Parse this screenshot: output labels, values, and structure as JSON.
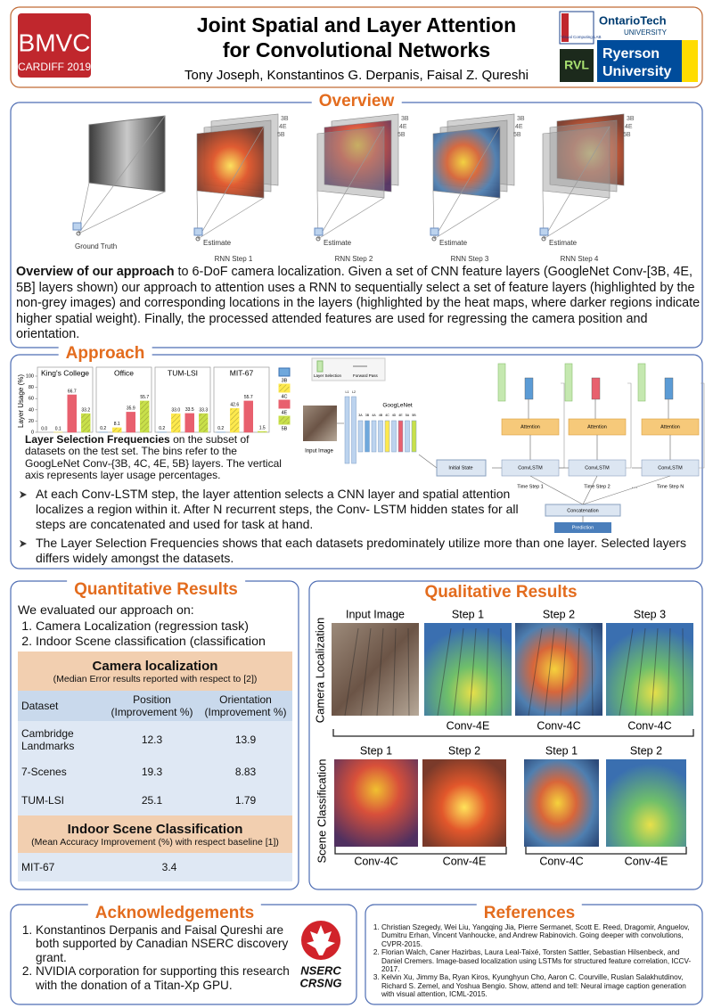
{
  "header": {
    "logo_text": "BMVC",
    "logo_subtext": "CARDIFF 2019",
    "title_lines": [
      "Joint Spatial and Layer Attention",
      "for Convolutional Networks"
    ],
    "authors": "Tony Joseph, Konstantinos G. Derpanis, Faisal Z. Qureshi",
    "logos": [
      "Visual Computing LAB",
      "OntarioTech",
      "UNIVERSITY",
      "RVL",
      "Ryerson",
      "University"
    ]
  },
  "overview": {
    "heading": "Overview",
    "layer_labels": [
      "3B",
      "4E",
      "5B"
    ],
    "point_labels": [
      "Ground Truth",
      "Estimate",
      "Estimate",
      "Estimate",
      "Estimate"
    ],
    "step_labels": [
      "RNN Step 1",
      "RNN Step 2",
      "RNN Step 3",
      "RNN Step 4"
    ],
    "text_lead": "Overview of our approach",
    "text": "to 6-DoF camera localization. Given a set of CNN feature layers (GoogleNet Conv-[3B, 4E, 5B] layers shown) our approach to attention uses a RNN to sequentially select a set of feature layers (highlighted by the non-grey images) and corresponding locations in the layers (highlighted by the heat maps, where darker regions indicate higher spatial weight). Finally, the processed attended features are used for regressing the camera position and orientation."
  },
  "approach": {
    "heading": "Approach",
    "chart": {
      "type": "bar",
      "y_label": "Layer Usage (%)",
      "categories": [
        "3B",
        "4C",
        "4E",
        "5B"
      ],
      "colors": [
        "#6fa8dc",
        "#ffe94d",
        "#e8606e",
        "#c8e04a"
      ],
      "hatch": [
        false,
        true,
        false,
        true
      ],
      "ylim": [
        0,
        100
      ],
      "yticks": [
        0,
        20,
        40,
        60,
        80,
        100
      ],
      "panels": [
        {
          "name": "King's College",
          "values": [
            0.0,
            0.1,
            66.7,
            33.2
          ],
          "value_labels": [
            "0.0",
            "0.1",
            "66.7",
            "33.2"
          ]
        },
        {
          "name": "Office",
          "values": [
            0.2,
            8.1,
            35.9,
            55.7
          ],
          "value_labels": [
            "0.2",
            "8.1",
            "35.9",
            "55.7"
          ]
        },
        {
          "name": "TUM-LSI",
          "values": [
            0.2,
            33.0,
            33.5,
            33.3
          ],
          "value_labels": [
            "0.2",
            "33.0",
            "33.5",
            "33.3"
          ]
        },
        {
          "name": "MIT-67",
          "values": [
            0.2,
            42.6,
            55.7,
            1.5
          ],
          "value_labels": [
            "0.2",
            "42.6",
            "55.7",
            "1.5"
          ]
        }
      ]
    },
    "caption_lead": "Layer Selection Frequencies",
    "caption": "on the subset of datasets on the test set. The bins refer to the GoogLeNet Conv-{3B, 4C, 4E, 5B} layers.  The vertical axis represents layer usage percentages.",
    "diagram": {
      "legend": [
        "Layer Selection",
        "Forward Pass"
      ],
      "input": "Input Image",
      "network": "GoogLeNet",
      "layer_names": [
        "L1",
        "L2",
        "3A",
        "3B",
        "4A",
        "4B",
        "4C",
        "4D",
        "4E",
        "5A",
        "5B"
      ],
      "initial": "Initial State",
      "attention": "Attention",
      "convlstm": "ConvLSTM",
      "steps": [
        "Time Step 1",
        "Time Step 2",
        "Time Step N"
      ],
      "dots": "....",
      "concat": "Concatenation",
      "prediction": "Prediction"
    },
    "bullets": [
      "At each Conv-LSTM step, the layer attention selects a  CNN layer and spatial attention localizes a region within it. After N recurrent steps,  the Conv- LSTM hidden states for all steps are concatenated and used for task at hand.",
      "The Layer Selection Frequencies shows that each datasets predominately utilize more than one layer. Selected layers differs widely amongst the datasets."
    ]
  },
  "quantitative": {
    "heading": "Quantitative Results",
    "intro": "We evaluated our approach on:",
    "tasks": [
      "Camera Localization (regression task)",
      "Indoor Scene classification (classification task)"
    ],
    "camera": {
      "title": "Camera localization",
      "subtitle": "(Median Error results reported with respect to [2])",
      "header": [
        [
          "Dataset"
        ],
        [
          "Position",
          "(Improvement %)"
        ],
        [
          "Orientation",
          "(Improvement %)"
        ]
      ],
      "rows": [
        [
          "Cambridge Landmarks",
          12.3,
          13.9
        ],
        [
          "7-Scenes",
          19.3,
          8.83
        ],
        [
          "TUM-LSI",
          25.1,
          1.79
        ]
      ]
    },
    "scene": {
      "title": "Indoor Scene Classification",
      "subtitle": "(Mean Accuracy Improvement (%) with respect baseline [1])",
      "rows": [
        [
          "MIT-67",
          3.4
        ]
      ]
    }
  },
  "qualitative": {
    "heading": "Qualitative Results",
    "row_labels": [
      "Camera Localization",
      "Scene Classification"
    ],
    "camera_columns": [
      "Input Image",
      "Step 1",
      "Step 2",
      "Step 3"
    ],
    "camera_layers": [
      "Conv-4E",
      "Conv-4C",
      "Conv-4C"
    ],
    "scene_columns": [
      "Step 1",
      "Step 2",
      "Step 1",
      "Step 2"
    ],
    "scene_layers": [
      "Conv-4C",
      "Conv-4E",
      "Conv-4C",
      "Conv-4E"
    ]
  },
  "acknowledgements": {
    "heading": "Acknowledgements",
    "items": [
      "Konstantinos Derpanis and Faisal Qureshi are both supported by Canadian NSERC discovery grant.",
      "NVIDIA corporation for supporting this research with the donation of a Titan-Xp GPU."
    ],
    "logo": [
      "NSERC",
      "CRSNG"
    ]
  },
  "references": {
    "heading": "References",
    "items": [
      "Christian Szegedy, Wei Liu, Yangqing Jia, Pierre Sermanet, Scott E. Reed, Dragomir, Anguelov, Dumitru Erhan, Vincent Vanhoucke, and Andrew Rabinovich. Going deeper with convolutions, CVPR-2015.",
      "Florian Walch, Caner Hazirbas, Laura Leal-Taixé, Torsten Sattler, Sebastian Hilsenbeck, and Daniel Cremers. Image-based localization using LSTMs for structured feature correlation, ICCV-2017.",
      "Kelvin Xu, Jimmy Ba, Ryan Kiros, Kyunghyun Cho, Aaron C. Courville, Ruslan Salakhutdinov, Richard S. Zemel, and Yoshua Bengio. Show, attend and tell: Neural image caption generation with visual attention, ICML-2015."
    ]
  }
}
